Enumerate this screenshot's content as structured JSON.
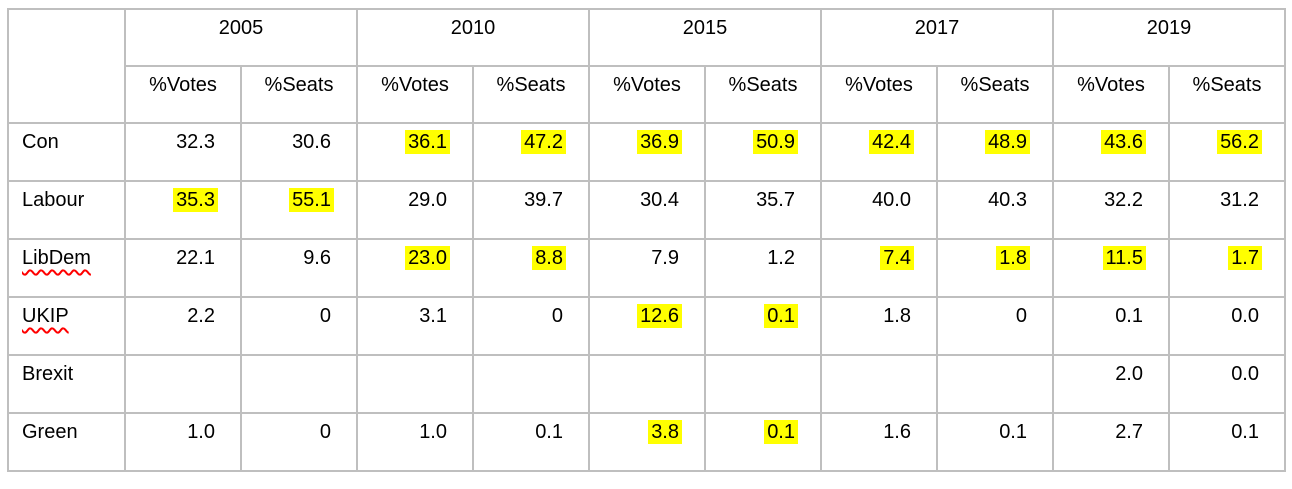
{
  "table": {
    "corner": "",
    "years": [
      "2005",
      "2010",
      "2015",
      "2017",
      "2019"
    ],
    "measures": [
      "%Votes",
      "%Seats"
    ],
    "highlight_color": "#ffff00",
    "border_color": "#bfbfbf",
    "squiggle_color": "#ff0000",
    "rows": [
      {
        "party": "Con",
        "squiggle": false,
        "cells": [
          {
            "v": "32.3",
            "h": false
          },
          {
            "v": "30.6",
            "h": false
          },
          {
            "v": "36.1",
            "h": true
          },
          {
            "v": "47.2",
            "h": true
          },
          {
            "v": "36.9",
            "h": true
          },
          {
            "v": "50.9",
            "h": true
          },
          {
            "v": "42.4",
            "h": true
          },
          {
            "v": "48.9",
            "h": true
          },
          {
            "v": "43.6",
            "h": true
          },
          {
            "v": "56.2",
            "h": true
          }
        ]
      },
      {
        "party": "Labour",
        "squiggle": false,
        "cells": [
          {
            "v": "35.3",
            "h": true
          },
          {
            "v": "55.1",
            "h": true
          },
          {
            "v": "29.0",
            "h": false
          },
          {
            "v": "39.7",
            "h": false
          },
          {
            "v": "30.4",
            "h": false
          },
          {
            "v": "35.7",
            "h": false
          },
          {
            "v": "40.0",
            "h": false
          },
          {
            "v": "40.3",
            "h": false
          },
          {
            "v": "32.2",
            "h": false
          },
          {
            "v": "31.2",
            "h": false
          }
        ]
      },
      {
        "party": "LibDem",
        "squiggle": true,
        "cells": [
          {
            "v": "22.1",
            "h": false
          },
          {
            "v": "9.6",
            "h": false
          },
          {
            "v": "23.0",
            "h": true
          },
          {
            "v": "8.8",
            "h": true
          },
          {
            "v": "7.9",
            "h": false
          },
          {
            "v": "1.2",
            "h": false
          },
          {
            "v": "7.4",
            "h": true
          },
          {
            "v": "1.8",
            "h": true
          },
          {
            "v": "11.5",
            "h": true
          },
          {
            "v": "1.7",
            "h": true
          }
        ]
      },
      {
        "party": "UKIP",
        "squiggle": true,
        "cells": [
          {
            "v": "2.2",
            "h": false
          },
          {
            "v": "0",
            "h": false
          },
          {
            "v": "3.1",
            "h": false
          },
          {
            "v": "0",
            "h": false
          },
          {
            "v": "12.6",
            "h": true
          },
          {
            "v": "0.1",
            "h": true
          },
          {
            "v": "1.8",
            "h": false
          },
          {
            "v": "0",
            "h": false
          },
          {
            "v": "0.1",
            "h": false
          },
          {
            "v": "0.0",
            "h": false
          }
        ]
      },
      {
        "party": "Brexit",
        "squiggle": false,
        "cells": [
          {
            "v": "",
            "h": false
          },
          {
            "v": "",
            "h": false
          },
          {
            "v": "",
            "h": false
          },
          {
            "v": "",
            "h": false
          },
          {
            "v": "",
            "h": false
          },
          {
            "v": "",
            "h": false
          },
          {
            "v": "",
            "h": false
          },
          {
            "v": "",
            "h": false
          },
          {
            "v": "2.0",
            "h": false
          },
          {
            "v": "0.0",
            "h": false
          }
        ]
      },
      {
        "party": "Green",
        "squiggle": false,
        "cells": [
          {
            "v": "1.0",
            "h": false
          },
          {
            "v": "0",
            "h": false
          },
          {
            "v": "1.0",
            "h": false
          },
          {
            "v": "0.1",
            "h": false
          },
          {
            "v": "3.8",
            "h": true
          },
          {
            "v": "0.1",
            "h": true
          },
          {
            "v": "1.6",
            "h": false
          },
          {
            "v": "0.1",
            "h": false
          },
          {
            "v": "2.7",
            "h": false
          },
          {
            "v": "0.1",
            "h": false
          }
        ]
      }
    ]
  }
}
